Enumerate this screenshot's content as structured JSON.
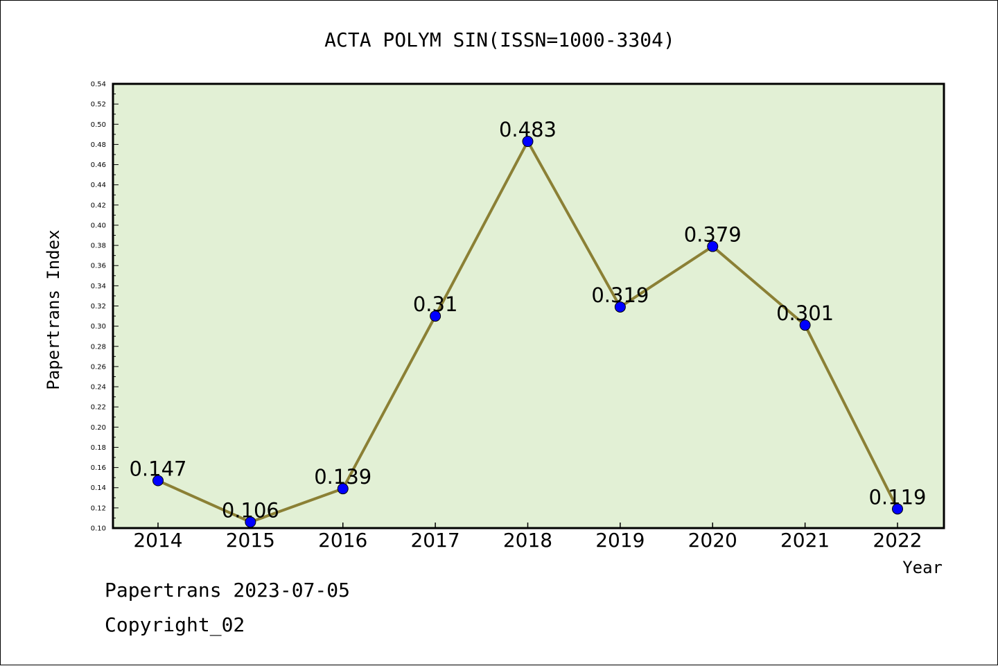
{
  "chart_data": {
    "type": "line",
    "title": "ACTA POLYM SIN(ISSN=1000-3304)",
    "xlabel": "Year",
    "ylabel": "Papertrans Index",
    "categories": [
      "2014",
      "2015",
      "2016",
      "2017",
      "2018",
      "2019",
      "2020",
      "2021",
      "2022"
    ],
    "series": [
      {
        "values": [
          0.147,
          0.106,
          0.139,
          0.31,
          0.483,
          0.319,
          0.379,
          0.301,
          0.119
        ],
        "data_labels": [
          "0.147",
          "0.106",
          "0.139",
          "0.31",
          "0.483",
          "0.319",
          "0.379",
          "0.301",
          "0.119"
        ],
        "line_color": "#8b8035",
        "marker_color": "#0000ff"
      }
    ],
    "ylim": [
      0.1,
      0.54
    ],
    "yticks": [
      "0.10",
      "0.12",
      "0.14",
      "0.16",
      "0.18",
      "0.20",
      "0.22",
      "0.24",
      "0.26",
      "0.28",
      "0.30",
      "0.32",
      "0.34",
      "0.36",
      "0.38",
      "0.40",
      "0.42",
      "0.44",
      "0.46",
      "0.48",
      "0.50",
      "0.52",
      "0.54"
    ],
    "plot_background": "#e2f0d5",
    "grid": false,
    "legend": "none"
  },
  "footer": {
    "line1": "Papertrans 2023-07-05",
    "line2": "Copyright_02"
  }
}
